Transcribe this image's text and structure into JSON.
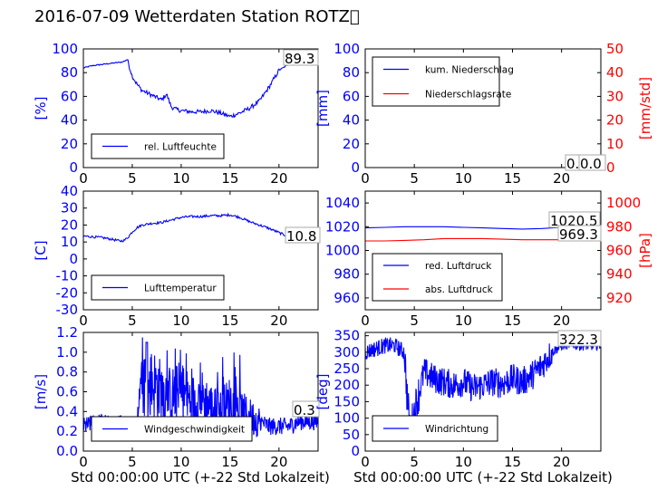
{
  "page_title": "2016-07-09 Wetterdaten Station ROTZ\u0000",
  "colors": {
    "left_axis": "#0000ff",
    "right_axis": "#ff0000",
    "series_blue": "#0000ff",
    "series_red": "#ff0000"
  },
  "chart_data": [
    {
      "id": "humidity",
      "type": "line",
      "ylabel": "[%]",
      "ylim": [
        0,
        100
      ],
      "yticks": [
        0,
        20,
        40,
        60,
        80,
        100
      ],
      "xlim": [
        0,
        24
      ],
      "xticks": [
        0,
        5,
        10,
        15,
        20
      ],
      "legend_placement": "lower-left",
      "series": [
        {
          "name": "rel. Luftfeuchte",
          "color": "#0000ff",
          "x": [
            0,
            1,
            2,
            3,
            4,
            4.5,
            4.7,
            5,
            5.5,
            6,
            7,
            8,
            8.5,
            9,
            9.5,
            10,
            11,
            12,
            13,
            14,
            15,
            16,
            17,
            18,
            19,
            20,
            21,
            22,
            23,
            24
          ],
          "y": [
            84,
            86,
            87,
            88,
            89,
            91,
            85,
            77,
            70,
            65,
            61,
            57,
            62,
            51,
            49,
            48,
            47,
            47,
            48,
            46,
            43,
            46,
            50,
            56,
            68,
            82,
            87,
            88,
            89,
            89.3
          ]
        }
      ],
      "annotations": [
        "89.3"
      ]
    },
    {
      "id": "precip",
      "type": "line",
      "ylabel": "[mm]",
      "ylim": [
        0,
        100
      ],
      "yticks": [
        0,
        20,
        40,
        60,
        80,
        100
      ],
      "ylabel_right": "[mm/std]",
      "ylim_right": [
        0,
        50
      ],
      "yticks_right": [
        0,
        10,
        20,
        30,
        40,
        50
      ],
      "xlim": [
        0,
        24
      ],
      "xticks": [
        0,
        5,
        10,
        15,
        20
      ],
      "legend_placement": "upper-left",
      "series": [
        {
          "name": "kum. Niederschlag",
          "color": "#0000ff",
          "x": [
            0,
            24
          ],
          "y": [
            0,
            0
          ]
        },
        {
          "name": "Niederschlagsrate",
          "color": "#ff0000",
          "axis": "right",
          "x": [
            0,
            24
          ],
          "y": [
            0,
            0
          ]
        }
      ],
      "annotations": [
        "0.0",
        "0.0"
      ]
    },
    {
      "id": "temperature",
      "type": "line",
      "ylabel": "[C]",
      "ylim": [
        -30,
        40
      ],
      "yticks": [
        -30,
        -20,
        -10,
        0,
        10,
        20,
        30,
        40
      ],
      "xlim": [
        0,
        24
      ],
      "xticks": [
        0,
        5,
        10,
        15,
        20
      ],
      "legend_placement": "lower-left",
      "series": [
        {
          "name": "Lufttemperatur",
          "color": "#0000ff",
          "x": [
            0,
            1,
            2,
            3,
            3.8,
            4.2,
            4.6,
            5,
            5.5,
            6,
            7,
            8,
            9,
            10,
            11,
            12,
            13,
            14,
            15,
            16,
            17,
            18,
            19,
            20,
            21,
            22,
            23,
            24
          ],
          "y": [
            13.5,
            13,
            12.5,
            11.5,
            10.5,
            11,
            13,
            16,
            18.5,
            20,
            21,
            21.5,
            23,
            24.5,
            25,
            25,
            25.5,
            25.5,
            26,
            24.5,
            22,
            20,
            18,
            15.5,
            13,
            11.5,
            11,
            10.8
          ]
        }
      ],
      "annotations": [
        "10.8"
      ]
    },
    {
      "id": "pressure",
      "type": "line",
      "ylabel_right": "[hPa]",
      "ylim": [
        950,
        1050
      ],
      "yticks": [
        960,
        980,
        1000,
        1020,
        1040
      ],
      "ylim_right": [
        910,
        1010
      ],
      "yticks_right": [
        920,
        940,
        960,
        980,
        1000
      ],
      "xlim": [
        0,
        24
      ],
      "xticks": [
        0,
        5,
        10,
        15,
        20
      ],
      "legend_placement": "lower-left",
      "series": [
        {
          "name": "red. Luftdruck",
          "color": "#0000ff",
          "x": [
            0,
            2,
            4,
            6,
            8,
            10,
            12,
            14,
            16,
            18,
            20,
            22,
            24
          ],
          "y": [
            1019,
            1019.5,
            1020,
            1020,
            1020,
            1019.5,
            1019,
            1018.5,
            1018,
            1018.5,
            1019.5,
            1020,
            1020.5
          ]
        },
        {
          "name": "abs. Luftdruck",
          "color": "#ff0000",
          "axis": "right",
          "x": [
            0,
            2,
            4,
            6,
            8,
            10,
            12,
            14,
            16,
            18,
            20,
            22,
            24
          ],
          "y": [
            968,
            968,
            968.5,
            969,
            970,
            970,
            970,
            969.5,
            969,
            969,
            969,
            969,
            969.3
          ]
        }
      ],
      "annotations": [
        "1020.5",
        "969.3"
      ]
    },
    {
      "id": "windspeed",
      "type": "line",
      "ylabel": "[m/s]",
      "ylim": [
        0,
        1.2
      ],
      "yticks": [
        0.0,
        0.2,
        0.4,
        0.6,
        0.8,
        1.0,
        1.2
      ],
      "xlim": [
        0,
        24
      ],
      "xticks": [
        0,
        5,
        10,
        15,
        20
      ],
      "legend_placement": "lower-left",
      "series": [
        {
          "name": "Windgeschwindigkeit",
          "color": "#0000ff",
          "x": [
            0,
            1,
            2,
            3,
            4,
            5,
            5.5,
            6,
            6.5,
            7,
            8,
            9,
            10,
            11,
            12,
            13,
            14,
            15,
            16,
            17,
            18,
            19,
            20,
            21,
            22,
            23,
            24
          ],
          "y": [
            0.25,
            0.28,
            0.3,
            0.25,
            0.3,
            0.2,
            0.3,
            0.9,
            0.5,
            0.7,
            0.6,
            0.55,
            0.6,
            0.5,
            0.55,
            0.45,
            0.4,
            0.5,
            0.4,
            0.35,
            0.3,
            0.25,
            0.25,
            0.25,
            0.3,
            0.3,
            0.3
          ]
        }
      ],
      "annotations": [
        "0.3"
      ]
    },
    {
      "id": "winddir",
      "type": "line",
      "ylabel": "[deg]",
      "ylim": [
        0,
        360
      ],
      "yticks": [
        0,
        50,
        100,
        150,
        200,
        250,
        300,
        350
      ],
      "xlim": [
        0,
        24
      ],
      "xticks": [
        0,
        5,
        10,
        15,
        20
      ],
      "legend_placement": "lower-left",
      "series": [
        {
          "name": "Windrichtung",
          "color": "#0000ff",
          "x": [
            0,
            1,
            2,
            3,
            4,
            4.3,
            4.6,
            5,
            5.5,
            6,
            7,
            8,
            9,
            10,
            11,
            12,
            13,
            14,
            15,
            16,
            17,
            18,
            19,
            20,
            21,
            22,
            23,
            24
          ],
          "y": [
            300,
            310,
            320,
            320,
            300,
            150,
            60,
            120,
            180,
            240,
            220,
            210,
            200,
            210,
            190,
            200,
            210,
            205,
            220,
            210,
            230,
            260,
            300,
            320,
            325,
            320,
            320,
            322.3
          ]
        }
      ],
      "annotations": [
        "322.3"
      ]
    }
  ],
  "xlabel": "Std 00:00:00 UTC (+-22 Std Lokalzeit)"
}
